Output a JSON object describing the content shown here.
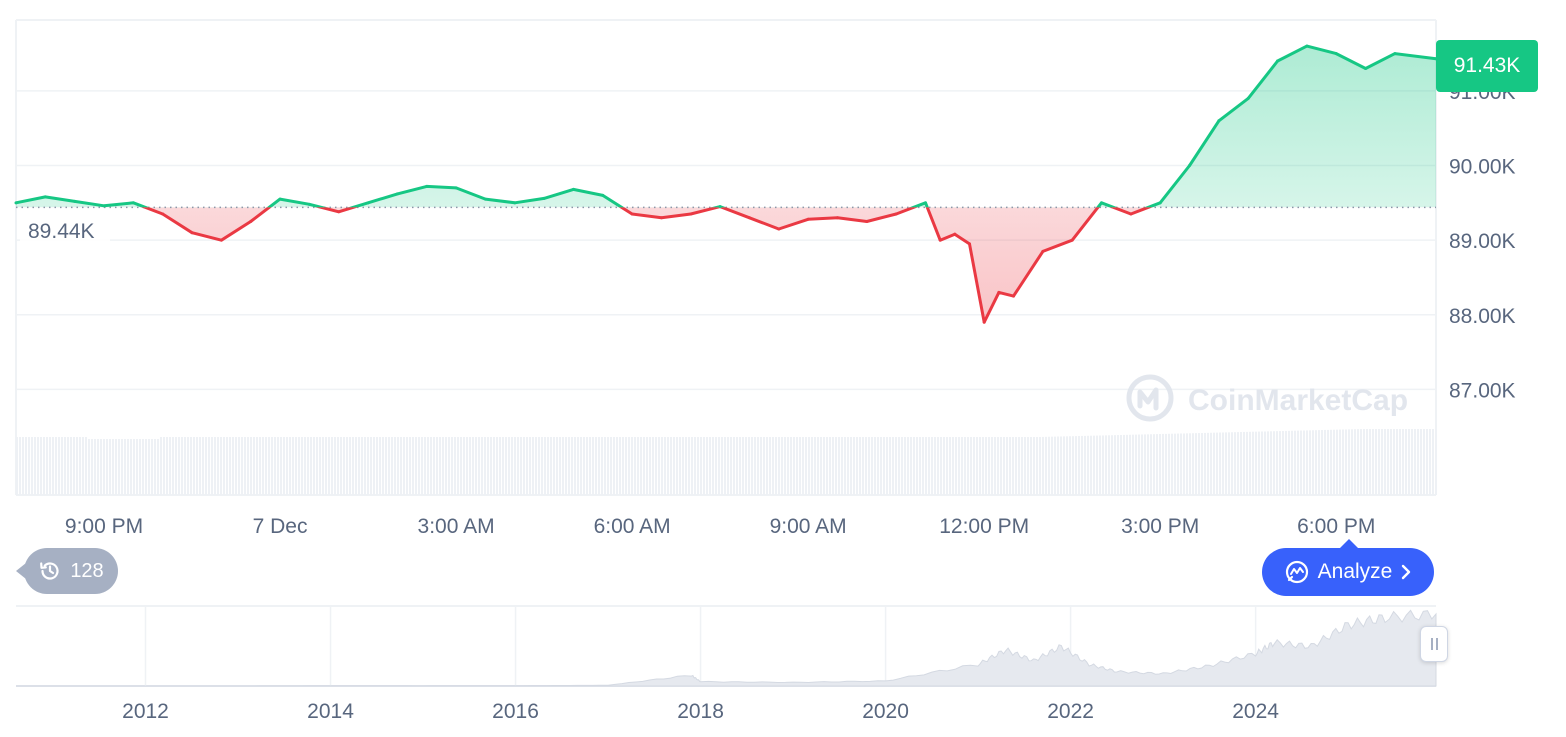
{
  "chart_data": [
    {
      "type": "line",
      "baseline": {
        "value": 89.44,
        "label": "89.44K"
      },
      "current": {
        "value": 91.43,
        "label": "91.43K"
      },
      "ylim": [
        86.55,
        91.95
      ],
      "y_ticks": [
        87,
        88,
        89,
        90,
        91
      ],
      "y_tick_labels": [
        "87.00K",
        "88.00K",
        "89.00K",
        "90.00K",
        "91.00K"
      ],
      "x_tick_labels": [
        "9:00 PM",
        "7 Dec",
        "3:00 AM",
        "6:00 AM",
        "9:00 AM",
        "12:00 PM",
        "3:00 PM",
        "6:00 PM"
      ],
      "x_tick_hours": [
        0,
        3,
        6,
        9,
        12,
        15,
        18,
        21
      ],
      "xlim_hours": [
        -1.5,
        22.7
      ],
      "values_unit": "K",
      "x_hours": [
        -1.5,
        -1.0,
        -0.5,
        0.0,
        0.5,
        1.0,
        1.5,
        2.0,
        2.5,
        3.0,
        3.5,
        4.0,
        4.5,
        5.0,
        5.5,
        6.0,
        6.5,
        7.0,
        7.5,
        8.0,
        8.5,
        9.0,
        9.5,
        10.0,
        10.5,
        11.0,
        11.5,
        12.0,
        12.5,
        13.0,
        13.5,
        14.0,
        14.25,
        14.5,
        14.75,
        15.0,
        15.25,
        15.5,
        16.0,
        16.5,
        17.0,
        17.5,
        18.0,
        18.5,
        19.0,
        19.5,
        20.0,
        20.5,
        21.0,
        21.5,
        22.0,
        22.7
      ],
      "values": [
        89.5,
        89.58,
        89.52,
        89.46,
        89.5,
        89.35,
        89.1,
        89.0,
        89.25,
        89.55,
        89.48,
        89.38,
        89.5,
        89.62,
        89.72,
        89.7,
        89.55,
        89.5,
        89.56,
        89.68,
        89.6,
        89.35,
        89.3,
        89.35,
        89.45,
        89.3,
        89.15,
        89.28,
        89.3,
        89.25,
        89.35,
        89.5,
        89.0,
        89.08,
        88.95,
        87.9,
        88.3,
        88.25,
        88.85,
        89.0,
        89.5,
        89.35,
        89.5,
        90.0,
        90.6,
        90.9,
        91.4,
        91.6,
        91.5,
        91.3,
        91.5,
        91.43
      ]
    },
    {
      "type": "area",
      "x_tick_labels": [
        "2012",
        "2014",
        "2016",
        "2018",
        "2020",
        "2022",
        "2024"
      ],
      "x_tick_years": [
        2012,
        2014,
        2016,
        2018,
        2020,
        2022,
        2024
      ],
      "xlim_years": [
        2010.6,
        2025.95
      ],
      "x_years": [
        2010.6,
        2012,
        2013,
        2014,
        2015,
        2016,
        2017,
        2017.9,
        2018,
        2019,
        2020,
        2021,
        2021.3,
        2021.6,
        2021.9,
        2022.2,
        2022.5,
        2023,
        2023.5,
        2024,
        2024.2,
        2024.6,
        2025,
        2025.4,
        2025.95
      ],
      "values": [
        0,
        0,
        0,
        0.3,
        0.2,
        0.4,
        1.0,
        15,
        6,
        5,
        7,
        30,
        50,
        35,
        55,
        30,
        20,
        17,
        28,
        45,
        60,
        55,
        85,
        95,
        100
      ]
    }
  ],
  "ui": {
    "watermark": "CoinMarketCap",
    "history_count": "128",
    "analyze_label": "Analyze",
    "colors": {
      "up": "#16c784",
      "down": "#ea3943",
      "accent": "#3861fb",
      "axis_text": "#58667e",
      "grid": "#eff2f5",
      "baseline_label_text": "#58667e"
    },
    "icons": {
      "history": "history-clock-icon",
      "analyze": "analyze-chat-icon",
      "chevron": "chevron-right-icon",
      "logo": "coinmarketcap-logo-icon"
    }
  }
}
